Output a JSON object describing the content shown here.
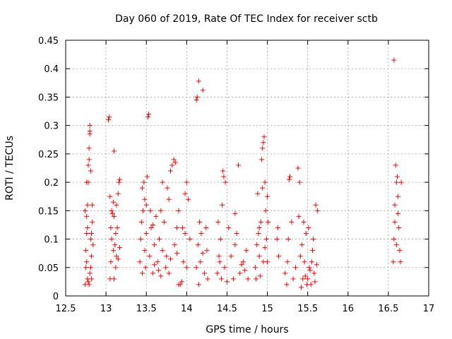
{
  "chart_data": {
    "type": "scatter",
    "title": "Day 060 of 2019, Rate Of TEC Index for receiver sctb",
    "xlabel": "GPS time / hours",
    "ylabel": "ROTI / TECUs",
    "xlim": [
      12.5,
      17
    ],
    "ylim": [
      0,
      0.45
    ],
    "xticks": [
      "12.5",
      "13",
      "13.5",
      "14",
      "14.5",
      "15",
      "15.5",
      "16",
      "16.5",
      "17"
    ],
    "yticks": [
      "0",
      "0.05",
      "0.1",
      "0.15",
      "0.2",
      "0.25",
      "0.3",
      "0.35",
      "0.4",
      "0.45"
    ],
    "grid": true,
    "marker": "+",
    "color": "#ff0000",
    "series": [
      {
        "name": "ROTI",
        "points": [
          [
            12.74,
            0.02
          ],
          [
            12.75,
            0.05
          ],
          [
            12.75,
            0.08
          ],
          [
            12.76,
            0.11
          ],
          [
            12.76,
            0.14
          ],
          [
            12.77,
            0.12
          ],
          [
            12.77,
            0.16
          ],
          [
            12.78,
            0.2
          ],
          [
            12.78,
            0.23
          ],
          [
            12.79,
            0.24
          ],
          [
            12.79,
            0.26
          ],
          [
            12.8,
            0.3
          ],
          [
            12.8,
            0.29
          ],
          [
            12.81,
            0.1
          ],
          [
            12.81,
            0.05
          ],
          [
            12.82,
            0.03
          ],
          [
            12.82,
            0.07
          ],
          [
            12.83,
            0.13
          ],
          [
            12.84,
            0.09
          ],
          [
            12.76,
            0.06
          ],
          [
            12.77,
            0.03
          ],
          [
            12.78,
            0.025
          ],
          [
            12.79,
            0.02
          ],
          [
            12.8,
            0.04
          ],
          [
            12.74,
            0.15
          ],
          [
            12.76,
            0.2
          ],
          [
            12.82,
            0.11
          ],
          [
            12.83,
            0.16
          ],
          [
            12.81,
            0.22
          ],
          [
            12.8,
            0.285
          ],
          [
            13.03,
            0.31
          ],
          [
            13.04,
            0.315
          ],
          [
            13.05,
            0.03
          ],
          [
            13.06,
            0.06
          ],
          [
            13.07,
            0.1
          ],
          [
            13.08,
            0.145
          ],
          [
            13.09,
            0.165
          ],
          [
            13.1,
            0.14
          ],
          [
            13.1,
            0.255
          ],
          [
            13.11,
            0.09
          ],
          [
            13.12,
            0.05
          ],
          [
            13.13,
            0.07
          ],
          [
            13.14,
            0.12
          ],
          [
            13.15,
            0.18
          ],
          [
            13.16,
            0.2
          ],
          [
            13.17,
            0.205
          ],
          [
            13.07,
            0.15
          ],
          [
            13.09,
            0.08
          ],
          [
            13.12,
            0.11
          ],
          [
            13.15,
            0.065
          ],
          [
            13.06,
            0.12
          ],
          [
            13.1,
            0.03
          ],
          [
            13.13,
            0.16
          ],
          [
            13.17,
            0.085
          ],
          [
            13.05,
            0.175
          ],
          [
            13.42,
            0.06
          ],
          [
            13.43,
            0.1
          ],
          [
            13.44,
            0.13
          ],
          [
            13.45,
            0.19
          ],
          [
            13.46,
            0.15
          ],
          [
            13.47,
            0.2
          ],
          [
            13.48,
            0.08
          ],
          [
            13.49,
            0.05
          ],
          [
            13.5,
            0.16
          ],
          [
            13.51,
            0.21
          ],
          [
            13.52,
            0.315
          ],
          [
            13.53,
            0.32
          ],
          [
            13.54,
            0.07
          ],
          [
            13.56,
            0.12
          ],
          [
            13.58,
            0.04
          ],
          [
            13.6,
            0.09
          ],
          [
            13.62,
            0.14
          ],
          [
            13.64,
            0.06
          ],
          [
            13.66,
            0.1
          ],
          [
            13.68,
            0.035
          ],
          [
            13.7,
            0.08
          ],
          [
            13.72,
            0.13
          ],
          [
            13.74,
            0.05
          ],
          [
            13.76,
            0.19
          ],
          [
            13.78,
            0.17
          ],
          [
            13.8,
            0.22
          ],
          [
            13.82,
            0.23
          ],
          [
            13.84,
            0.24
          ],
          [
            13.86,
            0.235
          ],
          [
            13.88,
            0.12
          ],
          [
            13.9,
            0.02
          ],
          [
            13.92,
            0.02
          ],
          [
            13.94,
            0.025
          ],
          [
            13.96,
            0.06
          ],
          [
            13.98,
            0.11
          ],
          [
            14.0,
            0.2
          ],
          [
            14.02,
            0.17
          ],
          [
            14.04,
            0.1
          ],
          [
            13.45,
            0.04
          ],
          [
            13.5,
            0.11
          ],
          [
            13.55,
            0.15
          ],
          [
            13.6,
            0.055
          ],
          [
            13.65,
            0.045
          ],
          [
            13.7,
            0.2
          ],
          [
            13.75,
            0.07
          ],
          [
            13.8,
            0.065
          ],
          [
            13.85,
            0.09
          ],
          [
            13.9,
            0.15
          ],
          [
            13.95,
            0.12
          ],
          [
            14.0,
            0.05
          ],
          [
            13.48,
            0.17
          ],
          [
            13.58,
            0.125
          ],
          [
            13.68,
            0.15
          ],
          [
            13.78,
            0.04
          ],
          [
            13.88,
            0.075
          ],
          [
            13.98,
            0.18
          ],
          [
            14.12,
            0.345
          ],
          [
            14.13,
            0.35
          ],
          [
            14.15,
            0.378
          ],
          [
            14.2,
            0.362
          ],
          [
            14.12,
            0.05
          ],
          [
            14.14,
            0.09
          ],
          [
            14.16,
            0.13
          ],
          [
            14.18,
            0.11
          ],
          [
            14.2,
            0.075
          ],
          [
            14.22,
            0.04
          ],
          [
            14.24,
            0.12
          ],
          [
            14.26,
            0.03
          ],
          [
            14.15,
            0.02
          ],
          [
            14.17,
            0.06
          ],
          [
            14.25,
            0.08
          ],
          [
            14.38,
            0.04
          ],
          [
            14.4,
            0.07
          ],
          [
            14.42,
            0.1
          ],
          [
            14.43,
            0.03
          ],
          [
            14.44,
            0.16
          ],
          [
            14.45,
            0.22
          ],
          [
            14.46,
            0.21
          ],
          [
            14.47,
            0.05
          ],
          [
            14.5,
            0.025
          ],
          [
            14.52,
            0.12
          ],
          [
            14.55,
            0.07
          ],
          [
            14.58,
            0.03
          ],
          [
            14.6,
            0.09
          ],
          [
            14.62,
            0.11
          ],
          [
            14.64,
            0.23
          ],
          [
            14.66,
            0.04
          ],
          [
            14.7,
            0.06
          ],
          [
            14.72,
            0.045
          ],
          [
            14.74,
            0.08
          ],
          [
            14.76,
            0.03
          ],
          [
            14.39,
            0.13
          ],
          [
            14.41,
            0.06
          ],
          [
            14.48,
            0.2
          ],
          [
            14.6,
            0.145
          ],
          [
            14.68,
            0.055
          ],
          [
            14.85,
            0.05
          ],
          [
            14.87,
            0.09
          ],
          [
            14.89,
            0.11
          ],
          [
            14.9,
            0.07
          ],
          [
            14.92,
            0.13
          ],
          [
            14.93,
            0.24
          ],
          [
            14.94,
            0.26
          ],
          [
            14.95,
            0.27
          ],
          [
            14.96,
            0.28
          ],
          [
            14.97,
            0.2
          ],
          [
            14.98,
            0.15
          ],
          [
            14.99,
            0.1
          ],
          [
            15.0,
            0.06
          ],
          [
            15.01,
            0.13
          ],
          [
            14.86,
            0.03
          ],
          [
            14.88,
            0.18
          ],
          [
            14.91,
            0.035
          ],
          [
            14.94,
            0.19
          ],
          [
            14.97,
            0.085
          ],
          [
            15.0,
            0.175
          ],
          [
            14.9,
            0.12
          ],
          [
            14.95,
            0.06
          ],
          [
            15.12,
            0.1
          ],
          [
            15.13,
            0.12
          ],
          [
            15.14,
            0.07
          ],
          [
            15.22,
            0.04
          ],
          [
            15.24,
            0.02
          ],
          [
            15.25,
            0.06
          ],
          [
            15.26,
            0.1
          ],
          [
            15.27,
            0.205
          ],
          [
            15.28,
            0.21
          ],
          [
            15.3,
            0.13
          ],
          [
            15.32,
            0.03
          ],
          [
            15.35,
            0.05
          ],
          [
            15.38,
            0.225
          ],
          [
            15.4,
            0.2
          ],
          [
            15.42,
            0.015
          ],
          [
            15.44,
            0.03
          ],
          [
            15.46,
            0.06
          ],
          [
            15.48,
            0.11
          ],
          [
            15.5,
            0.03
          ],
          [
            15.52,
            0.05
          ],
          [
            15.54,
            0.02
          ],
          [
            15.56,
            0.08
          ],
          [
            15.58,
            0.04
          ],
          [
            15.6,
            0.16
          ],
          [
            15.62,
            0.15
          ],
          [
            15.39,
            0.14
          ],
          [
            15.43,
            0.09
          ],
          [
            15.47,
            0.035
          ],
          [
            15.51,
            0.12
          ],
          [
            15.55,
            0.06
          ],
          [
            15.59,
            0.025
          ],
          [
            15.45,
            0.13
          ],
          [
            15.53,
            0.045
          ],
          [
            15.57,
            0.1
          ],
          [
            15.61,
            0.055
          ],
          [
            15.41,
            0.07
          ],
          [
            15.49,
            0.02
          ],
          [
            16.57,
            0.415
          ],
          [
            16.56,
            0.06
          ],
          [
            16.57,
            0.1
          ],
          [
            16.58,
            0.13
          ],
          [
            16.59,
            0.23
          ],
          [
            16.6,
            0.2
          ],
          [
            16.61,
            0.21
          ],
          [
            16.62,
            0.175
          ],
          [
            16.63,
            0.12
          ],
          [
            16.64,
            0.08
          ],
          [
            16.65,
            0.06
          ],
          [
            16.66,
            0.2
          ],
          [
            16.58,
            0.16
          ],
          [
            16.6,
            0.09
          ],
          [
            16.62,
            0.145
          ]
        ]
      }
    ]
  }
}
